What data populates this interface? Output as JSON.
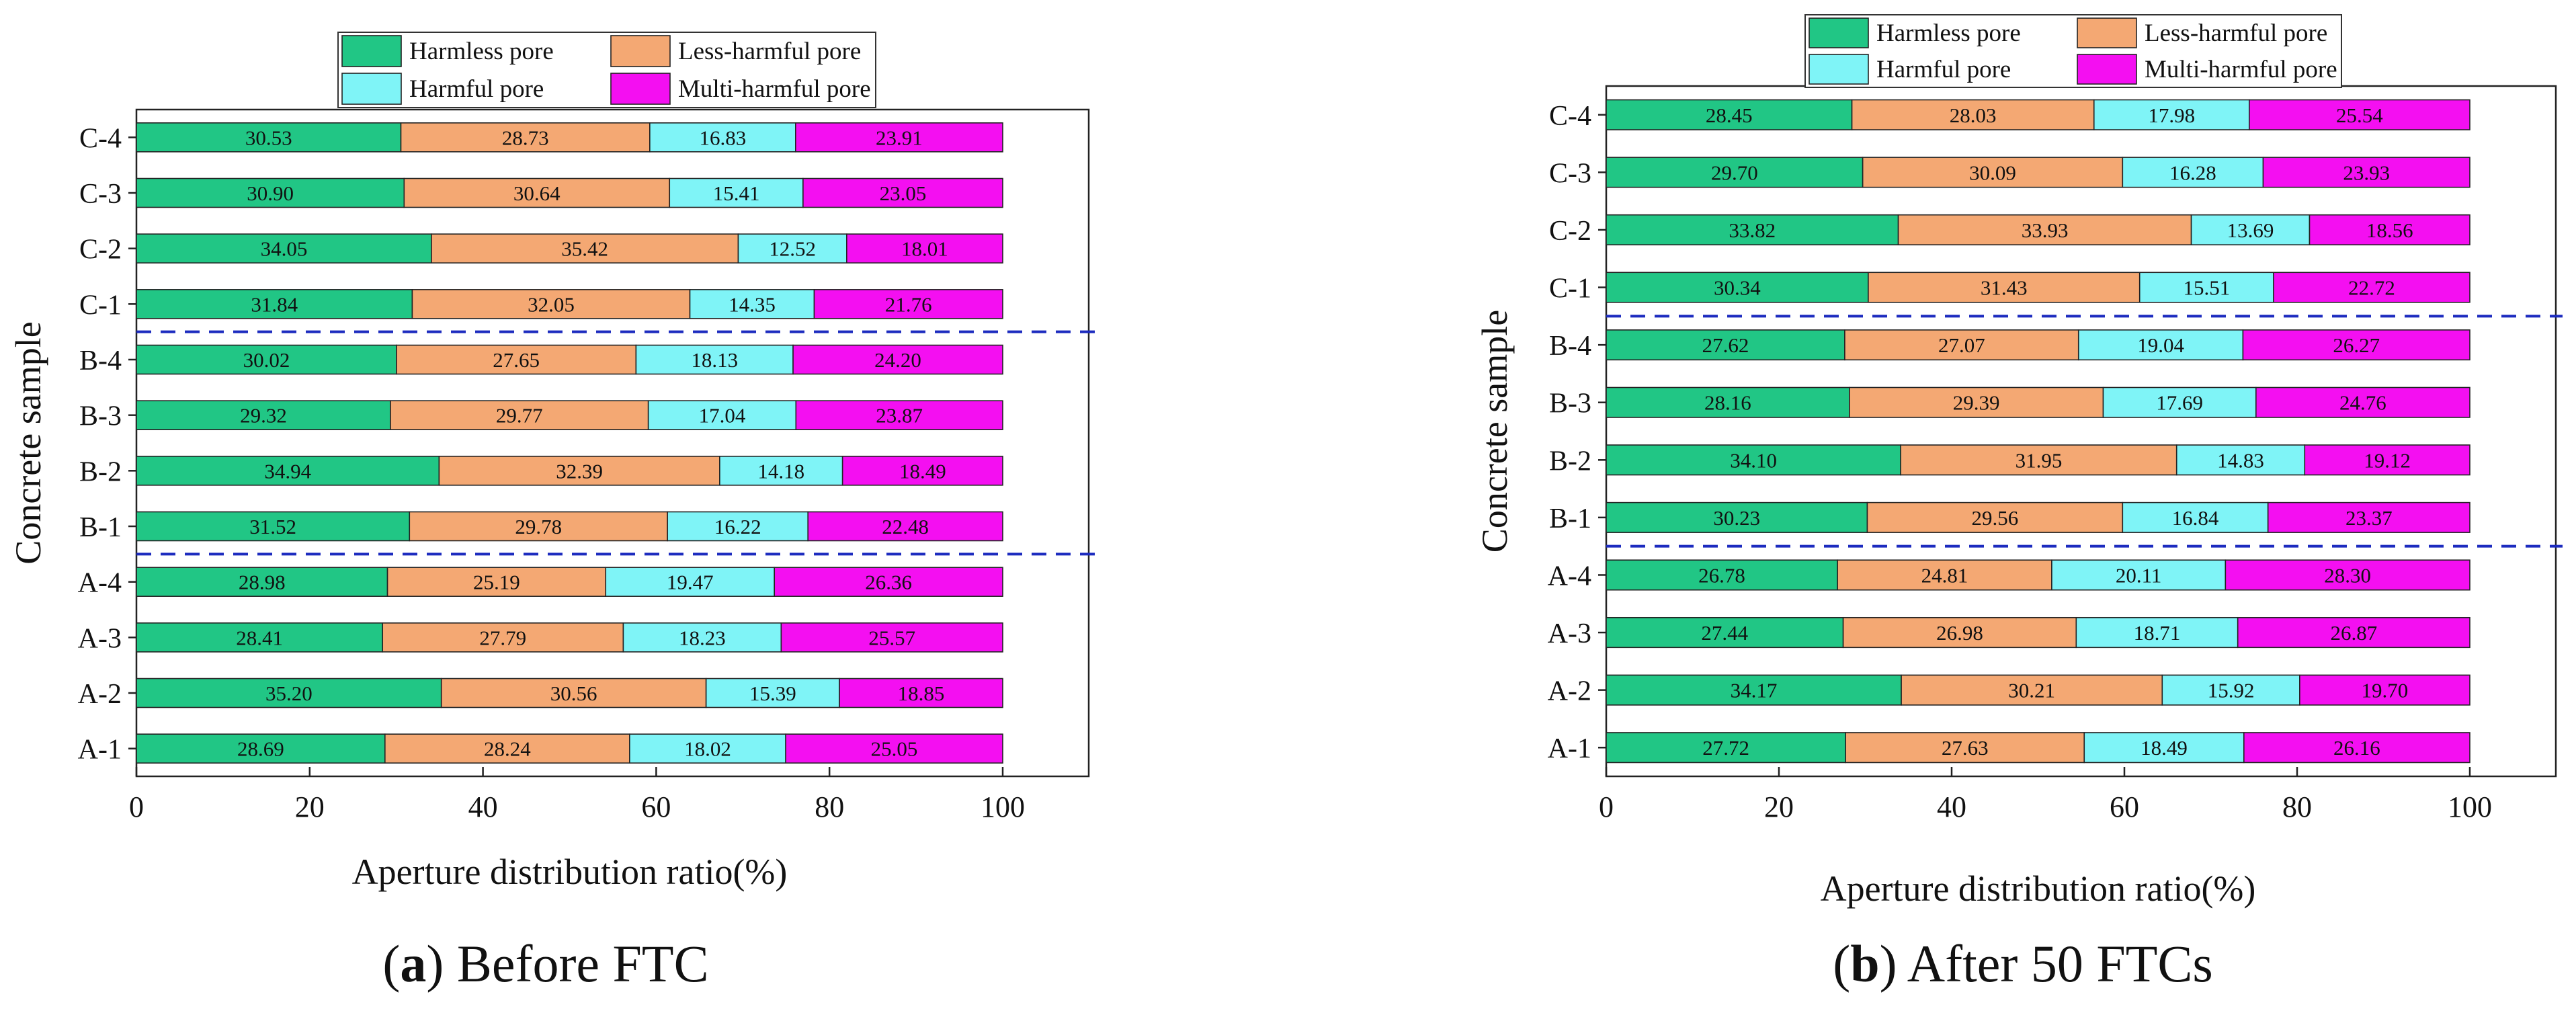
{
  "legend": {
    "labels": [
      "Harmless pore",
      "Less-harmful pore",
      "Harmful pore",
      "Multi-harmful pore"
    ]
  },
  "colors": {
    "harmless": "#21c685",
    "less_harmful": "#f4a873",
    "harmful": "#7ff4f7",
    "multi_harmful": "#f40ff1",
    "separator": "#1c2bbf"
  },
  "chart_data": [
    {
      "type": "bar",
      "orientation": "horizontal",
      "stacked": true,
      "caption_letter": "a",
      "caption_text": ") Before FTC",
      "xlabel": "Aperture distribution ratio(%)",
      "ylabel": "Concrete sample",
      "xlim": [
        0,
        110
      ],
      "xticks": [
        "0",
        "20",
        "40",
        "60",
        "80",
        "100"
      ],
      "categories": [
        "C-4",
        "C-3",
        "C-2",
        "C-1",
        "B-4",
        "B-3",
        "B-2",
        "B-1",
        "A-4",
        "A-3",
        "A-2",
        "A-1"
      ],
      "series": [
        {
          "name": "Harmless pore",
          "values": [
            "30.53",
            "30.90",
            "34.05",
            "31.84",
            "30.02",
            "29.32",
            "34.94",
            "31.52",
            "28.98",
            "28.41",
            "35.20",
            "28.69"
          ]
        },
        {
          "name": "Less-harmful pore",
          "values": [
            "28.73",
            "30.64",
            "35.42",
            "32.05",
            "27.65",
            "29.77",
            "32.39",
            "29.78",
            "25.19",
            "27.79",
            "30.56",
            "28.24"
          ]
        },
        {
          "name": "Harmful pore",
          "values": [
            "16.83",
            "15.41",
            "12.52",
            "14.35",
            "18.13",
            "17.04",
            "14.18",
            "16.22",
            "19.47",
            "18.23",
            "15.39",
            "18.02"
          ]
        },
        {
          "name": "Multi-harmful pore",
          "values": [
            "23.91",
            "23.05",
            "18.01",
            "21.76",
            "24.20",
            "23.87",
            "18.49",
            "22.48",
            "26.36",
            "25.57",
            "18.85",
            "25.05"
          ]
        }
      ],
      "group_separators_after": [
        "C-1",
        "B-1"
      ]
    },
    {
      "type": "bar",
      "orientation": "horizontal",
      "stacked": true,
      "caption_letter": "b",
      "caption_text": ") After 50 FTCs",
      "xlabel": "Aperture distribution ratio(%)",
      "ylabel": "Concrete sample",
      "xlim": [
        0,
        110
      ],
      "xticks": [
        "0",
        "20",
        "40",
        "60",
        "80",
        "100"
      ],
      "categories": [
        "C-4",
        "C-3",
        "C-2",
        "C-1",
        "B-4",
        "B-3",
        "B-2",
        "B-1",
        "A-4",
        "A-3",
        "A-2",
        "A-1"
      ],
      "series": [
        {
          "name": "Harmless pore",
          "values": [
            "28.45",
            "29.70",
            "33.82",
            "30.34",
            "27.62",
            "28.16",
            "34.10",
            "30.23",
            "26.78",
            "27.44",
            "34.17",
            "27.72"
          ]
        },
        {
          "name": "Less-harmful pore",
          "values": [
            "28.03",
            "30.09",
            "33.93",
            "31.43",
            "27.07",
            "29.39",
            "31.95",
            "29.56",
            "24.81",
            "26.98",
            "30.21",
            "27.63"
          ]
        },
        {
          "name": "Harmful pore",
          "values": [
            "17.98",
            "16.28",
            "13.69",
            "15.51",
            "19.04",
            "17.69",
            "14.83",
            "16.84",
            "20.11",
            "18.71",
            "15.92",
            "18.49"
          ]
        },
        {
          "name": "Multi-harmful pore",
          "values": [
            "25.54",
            "23.93",
            "18.56",
            "22.72",
            "26.27",
            "24.76",
            "19.12",
            "23.37",
            "28.30",
            "26.87",
            "19.70",
            "26.16"
          ]
        }
      ],
      "group_separators_after": [
        "C-1",
        "B-1"
      ]
    }
  ]
}
